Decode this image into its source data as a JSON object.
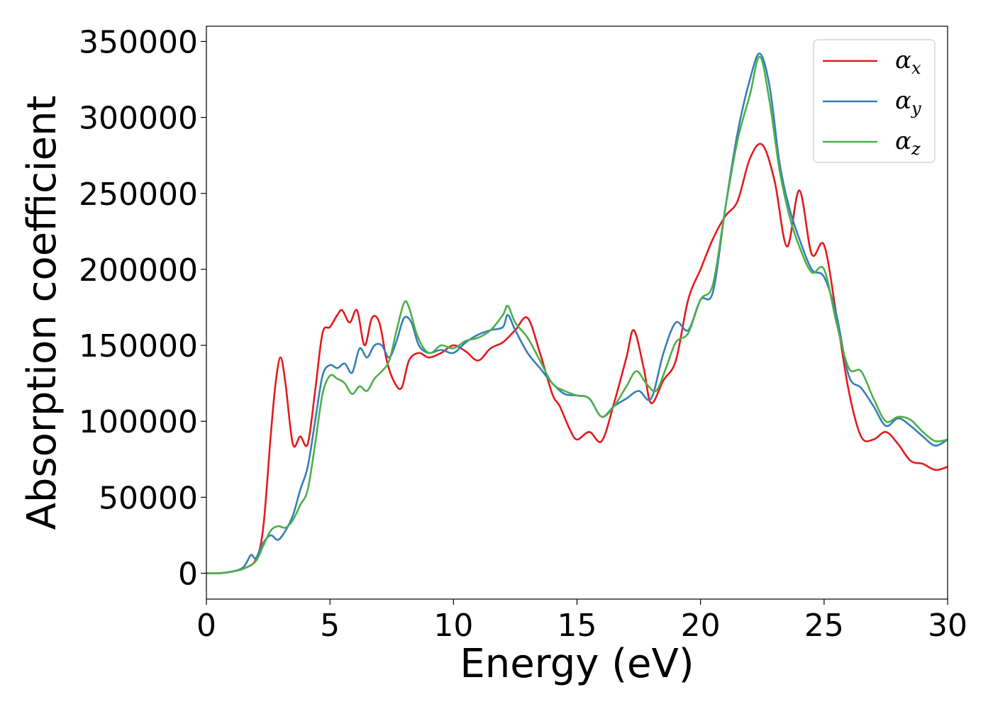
{
  "chart_data": {
    "type": "line",
    "title": "",
    "xlabel": "Energy (eV)",
    "ylabel": "Absorption coefficient",
    "xlim": [
      0,
      30
    ],
    "ylim": [
      -17000,
      360000
    ],
    "xticks": [
      0,
      5,
      10,
      15,
      20,
      25,
      30
    ],
    "yticks": [
      0,
      50000,
      100000,
      150000,
      200000,
      250000,
      300000,
      350000
    ],
    "grid": false,
    "legend_position": "top-right",
    "series": [
      {
        "name": "α",
        "subscript": "x",
        "color": "#e41a1c",
        "x": [
          0,
          0.5,
          1.0,
          1.5,
          2.0,
          2.3,
          2.6,
          2.8,
          3.0,
          3.2,
          3.5,
          3.8,
          4.1,
          4.4,
          4.7,
          5.0,
          5.3,
          5.5,
          5.8,
          6.1,
          6.4,
          6.7,
          7.0,
          7.3,
          7.6,
          7.9,
          8.2,
          8.6,
          9.0,
          9.5,
          10.0,
          10.5,
          11.0,
          11.5,
          12.0,
          12.5,
          13.0,
          13.5,
          14.0,
          14.3,
          14.7,
          15.0,
          15.5,
          16.0,
          16.5,
          17.0,
          17.3,
          17.7,
          18.0,
          18.5,
          19.0,
          19.5,
          20.0,
          20.5,
          21.0,
          21.5,
          22.0,
          22.5,
          23.0,
          23.5,
          24.0,
          24.5,
          25.0,
          25.5,
          26.0,
          26.5,
          27.0,
          27.5,
          28.0,
          28.5,
          29.0,
          29.5,
          30.0
        ],
        "y": [
          0,
          0,
          1000,
          3000,
          9000,
          30000,
          90000,
          125000,
          142000,
          125000,
          85000,
          90000,
          85000,
          120000,
          158000,
          162000,
          170000,
          173000,
          165000,
          173000,
          150000,
          168000,
          165000,
          140000,
          126000,
          122000,
          140000,
          145000,
          142000,
          145000,
          150000,
          146000,
          140000,
          148000,
          152000,
          160000,
          168000,
          145000,
          118000,
          110000,
          95000,
          88000,
          93000,
          87000,
          112000,
          142000,
          160000,
          135000,
          112000,
          127000,
          140000,
          180000,
          200000,
          220000,
          235000,
          245000,
          273000,
          282000,
          258000,
          215000,
          252000,
          210000,
          216000,
          170000,
          120000,
          90000,
          88000,
          93000,
          85000,
          74000,
          72000,
          68000,
          70000
        ]
      },
      {
        "name": "α",
        "subscript": "y",
        "color": "#377eb8",
        "x": [
          0,
          0.5,
          1.0,
          1.5,
          1.8,
          2.0,
          2.3,
          2.6,
          2.9,
          3.2,
          3.5,
          3.8,
          4.1,
          4.4,
          4.7,
          5.0,
          5.3,
          5.6,
          5.9,
          6.2,
          6.5,
          6.8,
          7.1,
          7.4,
          7.7,
          8.0,
          8.3,
          8.6,
          9.0,
          9.5,
          10.0,
          10.5,
          11.0,
          11.5,
          12.0,
          12.2,
          12.5,
          13.0,
          13.5,
          14.0,
          14.5,
          15.0,
          15.5,
          16.0,
          16.5,
          17.0,
          17.5,
          18.0,
          18.5,
          19.0,
          19.5,
          20.0,
          20.5,
          21.0,
          21.5,
          22.0,
          22.4,
          22.8,
          23.2,
          23.6,
          24.0,
          24.5,
          25.0,
          25.5,
          26.0,
          26.5,
          27.0,
          27.5,
          28.0,
          28.5,
          29.0,
          29.5,
          30.0
        ],
        "y": [
          0,
          0,
          1000,
          4000,
          12000,
          10000,
          20000,
          25000,
          22000,
          28000,
          38000,
          55000,
          70000,
          100000,
          130000,
          137000,
          135000,
          138000,
          132000,
          148000,
          142000,
          150000,
          150000,
          142000,
          153000,
          168000,
          165000,
          150000,
          145000,
          147000,
          145000,
          152000,
          157000,
          160000,
          162000,
          170000,
          160000,
          145000,
          135000,
          125000,
          118000,
          117000,
          115000,
          103000,
          110000,
          115000,
          120000,
          115000,
          145000,
          165000,
          160000,
          180000,
          185000,
          240000,
          290000,
          325000,
          342000,
          320000,
          270000,
          240000,
          220000,
          200000,
          195000,
          170000,
          130000,
          122000,
          110000,
          97000,
          102000,
          97000,
          90000,
          84000,
          88000
        ]
      },
      {
        "name": "α",
        "subscript": "z",
        "color": "#4daf4a",
        "x": [
          0,
          0.5,
          1.0,
          1.5,
          2.0,
          2.3,
          2.6,
          2.9,
          3.2,
          3.5,
          3.8,
          4.1,
          4.4,
          4.7,
          5.0,
          5.3,
          5.6,
          5.9,
          6.2,
          6.5,
          6.8,
          7.1,
          7.4,
          7.7,
          8.0,
          8.2,
          8.5,
          8.8,
          9.1,
          9.5,
          10.0,
          10.5,
          11.0,
          11.5,
          12.0,
          12.2,
          12.5,
          13.0,
          13.5,
          14.0,
          14.5,
          15.0,
          15.5,
          16.0,
          16.5,
          17.0,
          17.4,
          17.8,
          18.2,
          18.6,
          19.0,
          19.5,
          20.0,
          20.5,
          21.0,
          21.5,
          22.0,
          22.4,
          22.8,
          23.2,
          23.6,
          24.0,
          24.5,
          25.0,
          25.5,
          26.0,
          26.5,
          27.0,
          27.5,
          28.0,
          28.5,
          29.0,
          29.5,
          30.0
        ],
        "y": [
          0,
          0,
          1000,
          3000,
          8000,
          18000,
          28000,
          31000,
          30000,
          35000,
          45000,
          55000,
          85000,
          118000,
          130000,
          128000,
          125000,
          118000,
          123000,
          120000,
          128000,
          133000,
          140000,
          160000,
          178000,
          175000,
          158000,
          148000,
          145000,
          150000,
          148000,
          153000,
          155000,
          160000,
          170000,
          176000,
          165000,
          155000,
          140000,
          125000,
          120000,
          117000,
          115000,
          103000,
          110000,
          123000,
          133000,
          125000,
          120000,
          135000,
          152000,
          158000,
          180000,
          190000,
          240000,
          285000,
          315000,
          340000,
          310000,
          265000,
          235000,
          215000,
          198000,
          200000,
          165000,
          135000,
          133000,
          115000,
          100000,
          103000,
          101000,
          93000,
          87000,
          88000
        ]
      }
    ]
  }
}
